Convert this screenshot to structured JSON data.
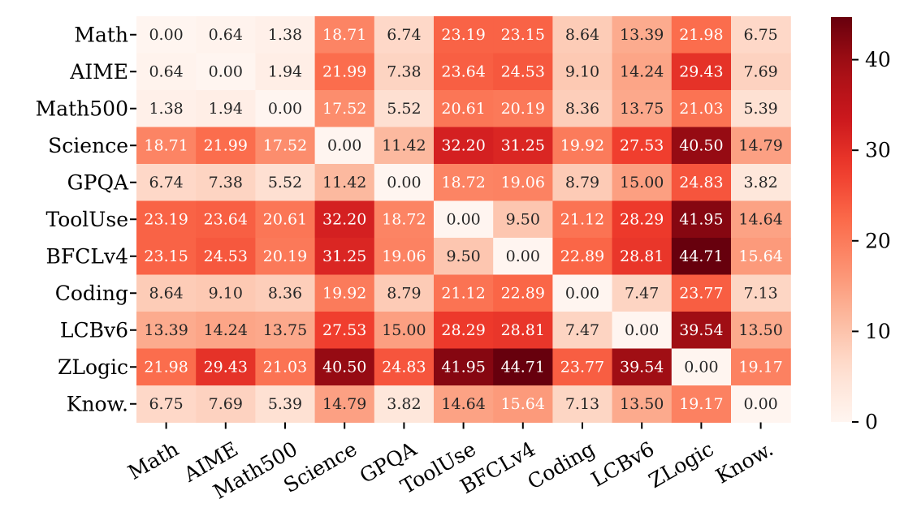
{
  "chart_data": {
    "type": "heatmap",
    "title": "",
    "xlabel": "",
    "ylabel": "",
    "rows": [
      "Math",
      "AIME",
      "Math500",
      "Science",
      "GPQA",
      "ToolUse",
      "BFCLv4",
      "Coding",
      "LCBv6",
      "ZLogic",
      "Know."
    ],
    "columns": [
      "Math",
      "AIME",
      "Math500",
      "Science",
      "GPQA",
      "ToolUse",
      "BFCLv4",
      "Coding",
      "LCBv6",
      "ZLogic",
      "Know."
    ],
    "cell_labels": [
      [
        "0.00",
        "0.64",
        "1.38",
        "18.71",
        "6.74",
        "23.19",
        "23.15",
        "8.64",
        "13.39",
        "21.98",
        "6.75"
      ],
      [
        "0.64",
        "0.00",
        "1.94",
        "21.99",
        "7.38",
        "23.64",
        "24.53",
        "9.10",
        "14.24",
        "29.43",
        "7.69"
      ],
      [
        "1.38",
        "1.94",
        "0.00",
        "17.52",
        "5.52",
        "20.61",
        "20.19",
        "8.36",
        "13.75",
        "21.03",
        "5.39"
      ],
      [
        "18.71",
        "21.99",
        "17.52",
        "0.00",
        "11.42",
        "32.20",
        "31.25",
        "19.92",
        "27.53",
        "40.50",
        "14.79"
      ],
      [
        "6.74",
        "7.38",
        "5.52",
        "11.42",
        "0.00",
        "18.72",
        "19.06",
        "8.79",
        "15.00",
        "24.83",
        "3.82"
      ],
      [
        "23.19",
        "23.64",
        "20.61",
        "32.20",
        "18.72",
        "0.00",
        "9.50",
        "21.12",
        "28.29",
        "41.95",
        "14.64"
      ],
      [
        "23.15",
        "24.53",
        "20.19",
        "31.25",
        "19.06",
        "9.50",
        "0.00",
        "22.89",
        "28.81",
        "44.71",
        "15.64"
      ],
      [
        "8.64",
        "9.10",
        "8.36",
        "19.92",
        "8.79",
        "21.12",
        "22.89",
        "0.00",
        "7.47",
        "23.77",
        "7.13"
      ],
      [
        "13.39",
        "14.24",
        "13.75",
        "27.53",
        "15.00",
        "28.29",
        "28.81",
        "7.47",
        "0.00",
        "39.54",
        "13.50"
      ],
      [
        "21.98",
        "29.43",
        "21.03",
        "40.50",
        "24.83",
        "41.95",
        "44.71",
        "23.77",
        "39.54",
        "0.00",
        "19.17"
      ],
      [
        "6.75",
        "7.69",
        "5.39",
        "14.79",
        "3.82",
        "14.64",
        "15.64",
        "7.13",
        "13.50",
        "19.17",
        "0.00"
      ]
    ],
    "colormap": "Reds",
    "colorbar": {
      "range": [
        0,
        44.71
      ],
      "ticks": [
        0,
        10,
        20,
        30,
        40
      ],
      "tick_labels": [
        "0",
        "10",
        "20",
        "30",
        "40"
      ]
    },
    "colors": {
      "low": "#fff5f0",
      "high": "#67000d",
      "text_dark": "#262626",
      "text_light": "#ffffff"
    }
  }
}
